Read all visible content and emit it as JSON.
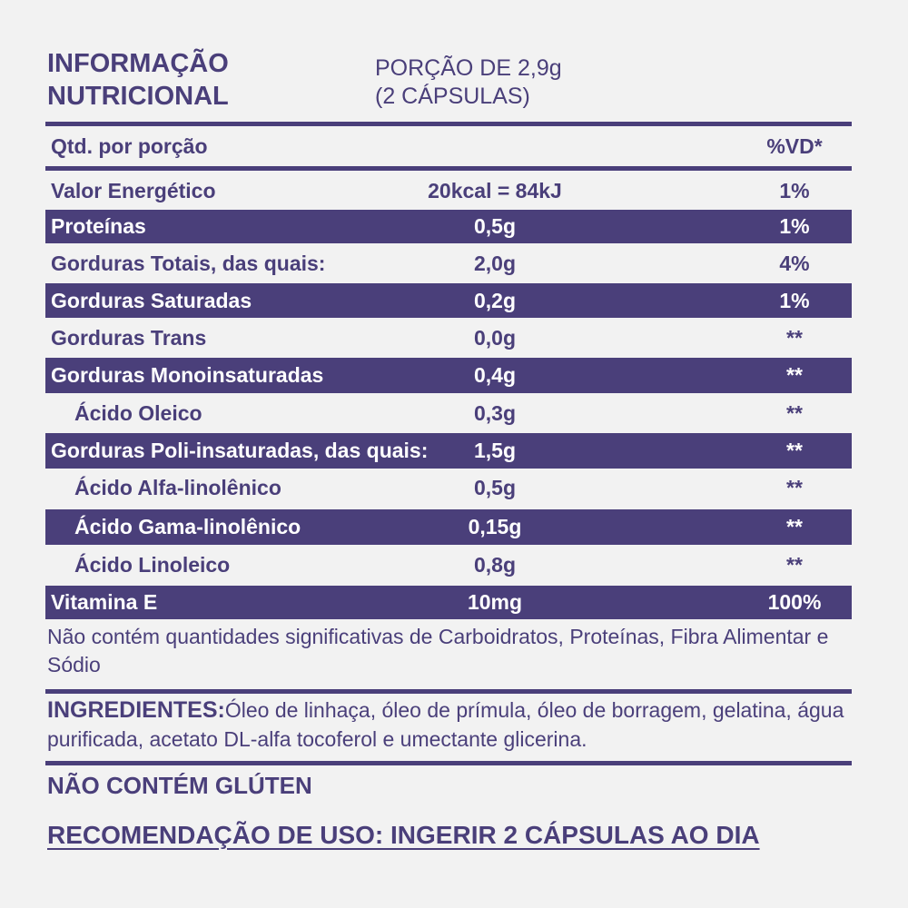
{
  "header": {
    "title_line1": "INFORMAÇÃO",
    "title_line2": "NUTRICIONAL",
    "serving_line1": "PORÇÃO DE 2,9g",
    "serving_line2": "(2 CÁPSULAS)"
  },
  "table": {
    "col_qty": "Qtd. por porção",
    "col_vd": "%VD*",
    "rows": [
      {
        "name": "Valor Energético",
        "value": "20kcal = 84kJ",
        "vd": "1%"
      },
      {
        "name": "Proteínas",
        "value": "0,5g",
        "vd": "1%"
      },
      {
        "name": "Gorduras Totais, das quais:",
        "value": "2,0g",
        "vd": "4%"
      },
      {
        "name": "Gorduras Saturadas",
        "value": "0,2g",
        "vd": "1%"
      },
      {
        "name": "Gorduras Trans",
        "value": "0,0g",
        "vd": "**"
      },
      {
        "name": "Gorduras Monoinsaturadas",
        "value": "0,4g",
        "vd": "**"
      },
      {
        "name": "Ácido Oleico",
        "value": "0,3g",
        "vd": "**"
      },
      {
        "name": "Gorduras Poli-insaturadas, das quais:",
        "value": "1,5g",
        "vd": "**"
      },
      {
        "name": "Ácido Alfa-linolênico",
        "value": "0,5g",
        "vd": "**"
      },
      {
        "name": "Ácido Gama-linolênico",
        "value": "0,15g",
        "vd": "**"
      },
      {
        "name": "Ácido Linoleico",
        "value": "0,8g",
        "vd": "**"
      },
      {
        "name": "Vitamina E",
        "value": "10mg",
        "vd": "100%"
      }
    ]
  },
  "note": "Não contém quantidades significativas de Carboidratos, Proteínas, Fibra Alimentar e Sódio",
  "ingredients": {
    "label": "INGREDIENTES:",
    "text": "Óleo de linhaça, óleo de prímula, óleo de borragem, gelatina, água purificada, acetato DL-alfa tocoferol e umectante glicerina."
  },
  "gluten": "NÃO CONTÉM GLÚTEN",
  "recommendation": "RECOMENDAÇÃO DE USO: INGERIR 2 CÁPSULAS AO DIA",
  "colors": {
    "accent": "#4a3f7a",
    "background": "#f2f2f2"
  }
}
